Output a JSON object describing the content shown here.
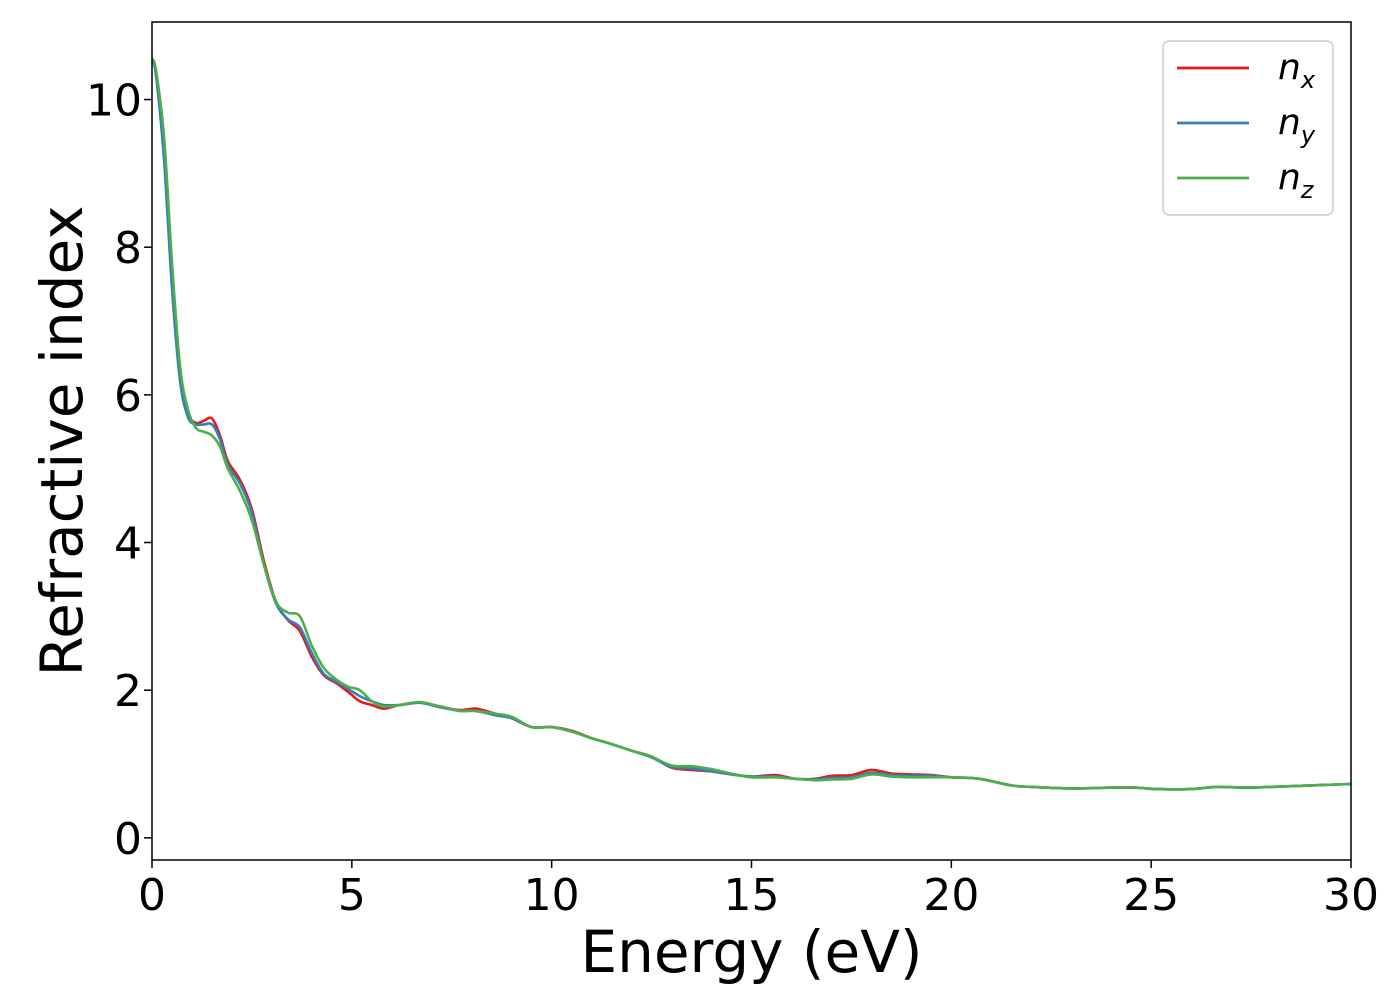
{
  "chart_data": {
    "type": "line",
    "xlabel": "Energy (eV)",
    "ylabel": "Refractive index",
    "xlim": [
      0,
      30
    ],
    "ylim": [
      -0.3,
      11.05
    ],
    "xticks": [
      0,
      5,
      10,
      15,
      20,
      25,
      30
    ],
    "xtick_labels": [
      "0",
      "5",
      "10",
      "15",
      "20",
      "25",
      "30"
    ],
    "yticks": [
      0,
      2,
      4,
      6,
      8,
      10
    ],
    "ytick_labels": [
      "0",
      "2",
      "4",
      "6",
      "8",
      "10"
    ],
    "grid": false,
    "legend_position": "top-right",
    "series": [
      {
        "name": "n",
        "subscript": "x",
        "color": "#e41a1c",
        "x": [
          0,
          0.1,
          0.3,
          0.5,
          0.7,
          0.9,
          1.1,
          1.3,
          1.5,
          1.7,
          1.9,
          2.2,
          2.5,
          2.8,
          3.1,
          3.4,
          3.7,
          4.0,
          4.3,
          4.6,
          4.9,
          5.2,
          5.5,
          5.8,
          6.2,
          6.7,
          7.2,
          7.7,
          8.1,
          8.6,
          9.0,
          9.5,
          10.0,
          10.5,
          11.0,
          11.5,
          12.0,
          12.5,
          13.0,
          13.5,
          14.0,
          14.5,
          15.0,
          15.6,
          16.1,
          16.6,
          17.0,
          17.5,
          18.0,
          18.5,
          19.0,
          19.5,
          20.0,
          20.7,
          21.5,
          22.0,
          23.0,
          24.0,
          24.6,
          25.2,
          26.0,
          26.6,
          27.3,
          28.0,
          29.0,
          30.0
        ],
        "y": [
          10.55,
          10.35,
          9.3,
          7.6,
          6.3,
          5.75,
          5.62,
          5.65,
          5.68,
          5.45,
          5.1,
          4.85,
          4.45,
          3.75,
          3.2,
          2.95,
          2.8,
          2.45,
          2.2,
          2.1,
          1.98,
          1.85,
          1.8,
          1.75,
          1.8,
          1.83,
          1.78,
          1.73,
          1.75,
          1.68,
          1.62,
          1.5,
          1.5,
          1.45,
          1.35,
          1.27,
          1.18,
          1.1,
          0.95,
          0.92,
          0.9,
          0.86,
          0.83,
          0.85,
          0.8,
          0.8,
          0.84,
          0.85,
          0.92,
          0.87,
          0.86,
          0.85,
          0.82,
          0.8,
          0.71,
          0.69,
          0.67,
          0.68,
          0.68,
          0.66,
          0.66,
          0.69,
          0.68,
          0.69,
          0.71,
          0.73
        ]
      },
      {
        "name": "n",
        "subscript": "y",
        "color": "#377eb8",
        "x": [
          0,
          0.1,
          0.3,
          0.5,
          0.7,
          0.9,
          1.1,
          1.3,
          1.5,
          1.7,
          1.9,
          2.2,
          2.5,
          2.8,
          3.1,
          3.4,
          3.7,
          4.0,
          4.3,
          4.6,
          4.9,
          5.2,
          5.5,
          5.8,
          6.2,
          6.7,
          7.2,
          7.7,
          8.1,
          8.6,
          9.0,
          9.5,
          10.0,
          10.5,
          11.0,
          11.5,
          12.0,
          12.5,
          13.0,
          13.5,
          14.0,
          14.5,
          15.0,
          15.6,
          16.1,
          16.6,
          17.0,
          17.5,
          18.0,
          18.5,
          19.0,
          19.5,
          20.0,
          20.7,
          21.5,
          22.0,
          23.0,
          24.0,
          24.6,
          25.2,
          26.0,
          26.6,
          27.3,
          28.0,
          29.0,
          30.0
        ],
        "y": [
          10.55,
          10.33,
          9.2,
          7.45,
          6.2,
          5.7,
          5.6,
          5.6,
          5.6,
          5.4,
          5.05,
          4.8,
          4.4,
          3.7,
          3.18,
          2.96,
          2.85,
          2.5,
          2.22,
          2.12,
          2.02,
          1.92,
          1.85,
          1.8,
          1.8,
          1.83,
          1.77,
          1.72,
          1.72,
          1.66,
          1.62,
          1.5,
          1.5,
          1.44,
          1.35,
          1.27,
          1.18,
          1.09,
          0.96,
          0.94,
          0.9,
          0.86,
          0.83,
          0.83,
          0.8,
          0.79,
          0.81,
          0.82,
          0.88,
          0.85,
          0.84,
          0.84,
          0.82,
          0.8,
          0.71,
          0.69,
          0.67,
          0.68,
          0.68,
          0.66,
          0.66,
          0.69,
          0.68,
          0.69,
          0.71,
          0.73
        ]
      },
      {
        "name": "n",
        "subscript": "z",
        "color": "#4daf4a",
        "x": [
          0,
          0.1,
          0.3,
          0.5,
          0.7,
          0.9,
          1.1,
          1.3,
          1.5,
          1.7,
          1.9,
          2.2,
          2.5,
          2.8,
          3.1,
          3.4,
          3.7,
          4.0,
          4.3,
          4.6,
          4.9,
          5.2,
          5.5,
          5.8,
          6.2,
          6.7,
          7.2,
          7.7,
          8.1,
          8.6,
          9.0,
          9.5,
          10.0,
          10.5,
          11.0,
          11.5,
          12.0,
          12.5,
          13.0,
          13.5,
          14.0,
          14.5,
          15.0,
          15.6,
          16.1,
          16.6,
          17.0,
          17.5,
          18.0,
          18.5,
          19.0,
          19.5,
          20.0,
          20.7,
          21.5,
          22.0,
          23.0,
          24.0,
          24.6,
          25.2,
          26.0,
          26.6,
          27.3,
          28.0,
          29.0,
          30.0
        ],
        "y": [
          10.55,
          10.4,
          9.5,
          7.8,
          6.4,
          5.8,
          5.55,
          5.5,
          5.45,
          5.3,
          5.0,
          4.7,
          4.3,
          3.7,
          3.2,
          3.05,
          3.0,
          2.6,
          2.3,
          2.15,
          2.05,
          2.0,
          1.85,
          1.78,
          1.8,
          1.84,
          1.78,
          1.72,
          1.72,
          1.68,
          1.64,
          1.5,
          1.5,
          1.44,
          1.35,
          1.27,
          1.18,
          1.1,
          0.98,
          0.97,
          0.93,
          0.87,
          0.82,
          0.82,
          0.8,
          0.78,
          0.79,
          0.8,
          0.86,
          0.83,
          0.82,
          0.82,
          0.82,
          0.8,
          0.71,
          0.69,
          0.67,
          0.68,
          0.68,
          0.66,
          0.66,
          0.69,
          0.68,
          0.69,
          0.71,
          0.73
        ]
      }
    ]
  }
}
